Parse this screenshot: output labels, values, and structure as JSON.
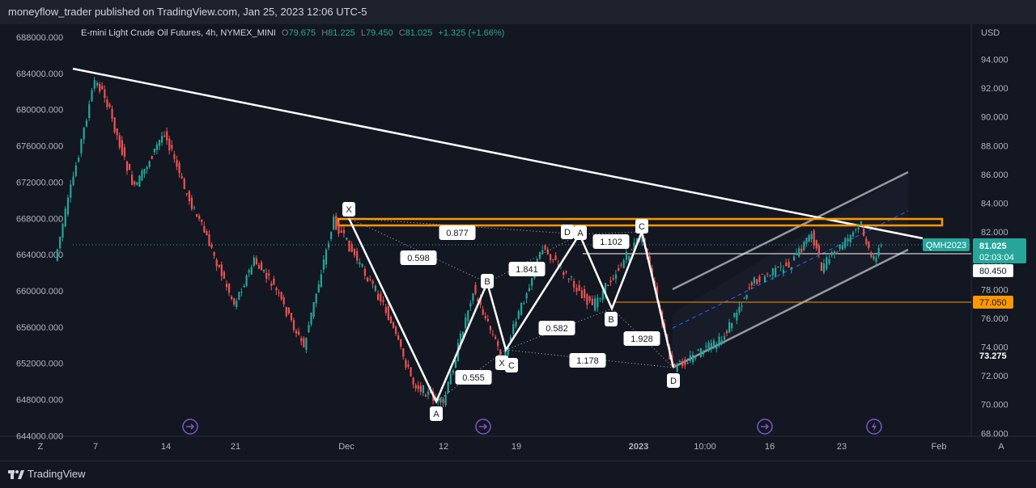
{
  "header": {
    "text": "moneyflow_trader published on TradingView.com, Jan 25, 2023 12:06 UTC-5"
  },
  "legend": {
    "symbol": "E-mini Light Crude Oil Futures, 4h, NYMEX_MINI",
    "o_label": "O",
    "o_value": "79.675",
    "h_label": "H",
    "h_value": "81.225",
    "l_label": "L",
    "l_value": "79.450",
    "c_label": "C",
    "c_value": "81.025",
    "change": "+1.325 (+1.66%)"
  },
  "footer": {
    "logo_text": "TradingView"
  },
  "colors": {
    "bg": "#131722",
    "up": "#26a69a",
    "down": "#ef5350",
    "orange": "#ff9800",
    "white": "#ffffff"
  },
  "chart_data": {
    "type": "candlestick",
    "timeframe": "4h",
    "currency": "USD",
    "right_axis": {
      "label": "USD",
      "ticks": [
        "94.000",
        "92.000",
        "90.000",
        "88.000",
        "86.000",
        "84.000",
        "82.000",
        "80.000",
        "78.000",
        "76.000",
        "74.000",
        "72.000",
        "70.000",
        "68.000"
      ],
      "tick_values": [
        94,
        92,
        90,
        88,
        86,
        84,
        82,
        80,
        78,
        76,
        74,
        72,
        70,
        68
      ],
      "range": [
        67.7,
        94.7
      ]
    },
    "left_axis": {
      "ticks": [
        "688000.000",
        "684000.000",
        "680000.000",
        "676000.000",
        "672000.000",
        "668000.000",
        "664000.000",
        "660000.000",
        "656000.000",
        "652000.000",
        "648000.000",
        "644000.000"
      ]
    },
    "x_axis": {
      "ticks": [
        "7",
        "14",
        "21",
        "Dec",
        "12",
        "19",
        "2023",
        "10:00",
        "16",
        "23",
        "Feb"
      ],
      "corner_left": "Z",
      "corner_right": "A"
    },
    "price_labels": {
      "symbol_tag": "QMH2023",
      "last_price": "81.025",
      "countdown": "02:03:04",
      "line_price": "80.450",
      "orange_level": "77.050",
      "low_level": "73.275"
    },
    "harmonic_points": [
      {
        "label": "X",
        "price": 82.8
      },
      {
        "label": "A",
        "price": 70.0
      },
      {
        "label": "B",
        "price": 78.0
      },
      {
        "label": "X",
        "price": 73.4
      },
      {
        "label": "C",
        "price": 73.1
      },
      {
        "label": "D",
        "price": 81.0
      },
      {
        "label": "A",
        "price": 81.0
      },
      {
        "label": "B",
        "price": 76.8
      },
      {
        "label": "C",
        "price": 81.9
      },
      {
        "label": "D",
        "price": 72.5
      }
    ],
    "ratios": [
      "0.877",
      "0.598",
      "1.841",
      "0.555",
      "0.582",
      "1.178",
      "1.102",
      "1.928"
    ],
    "ohlc_path": [
      {
        "t": "Nov 03",
        "price": 80.0
      },
      {
        "t": "Nov 07",
        "price": 92.5
      },
      {
        "t": "Nov 08",
        "price": 91.5
      },
      {
        "t": "Nov 10",
        "price": 87.0
      },
      {
        "t": "Nov 11",
        "price": 85.0
      },
      {
        "t": "Nov 14",
        "price": 89.0
      },
      {
        "t": "Nov 16",
        "price": 85.0
      },
      {
        "t": "Nov 18",
        "price": 82.0
      },
      {
        "t": "Nov 21",
        "price": 77.0
      },
      {
        "t": "Nov 23",
        "price": 80.0
      },
      {
        "t": "Nov 25",
        "price": 78.2
      },
      {
        "t": "Nov 28",
        "price": 74.0
      },
      {
        "t": "Nov 30",
        "price": 80.0
      },
      {
        "t": "Dec 01",
        "price": 82.8
      },
      {
        "t": "Dec 06",
        "price": 77.0
      },
      {
        "t": "Dec 09",
        "price": 71.5
      },
      {
        "t": "Dec 12",
        "price": 70.0
      },
      {
        "t": "Dec 15",
        "price": 78.0
      },
      {
        "t": "Dec 18",
        "price": 73.2
      },
      {
        "t": "Dec 22",
        "price": 81.0
      },
      {
        "t": "Dec 27",
        "price": 76.8
      },
      {
        "t": "Jan 01",
        "price": 81.9
      },
      {
        "t": "Jan 04",
        "price": 72.5
      },
      {
        "t": "Jan 09",
        "price": 74.5
      },
      {
        "t": "Jan 12",
        "price": 78.5
      },
      {
        "t": "Jan 16",
        "price": 79.8
      },
      {
        "t": "Jan 18",
        "price": 82.0
      },
      {
        "t": "Jan 19",
        "price": 79.5
      },
      {
        "t": "Jan 23",
        "price": 82.5
      },
      {
        "t": "Jan 24",
        "price": 80.0
      },
      {
        "t": "Jan 25",
        "price": 81.025
      }
    ]
  }
}
